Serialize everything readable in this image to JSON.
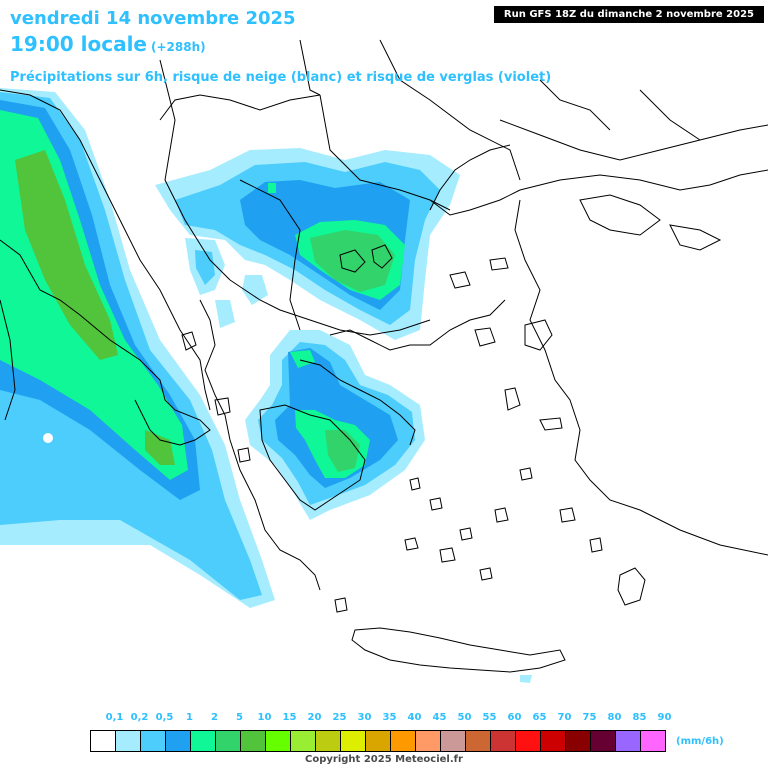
{
  "header": {
    "date_line": "vendredi 14 novembre 2025",
    "time_line": "19:00 locale",
    "lead_time": "(+288h)",
    "run_info": "Run GFS 18Z du dimanche 2 novembre 2025",
    "subtitle": "Précipitations sur 6h, risque de neige (blanc) et risque de verglas (violet)"
  },
  "legend": {
    "unit": "(mm/6h)",
    "labels": [
      "0,1",
      "0,2",
      "0,5",
      "1",
      "2",
      "5",
      "10",
      "15",
      "20",
      "25",
      "30",
      "35",
      "40",
      "45",
      "50",
      "55",
      "60",
      "65",
      "70",
      "75",
      "80",
      "85",
      "90"
    ],
    "colors": [
      "#ffffff",
      "#a6ecff",
      "#4ccdfc",
      "#1fa0f0",
      "#0ff796",
      "#32d36b",
      "#52c43c",
      "#66ff00",
      "#99ee33",
      "#bbcc11",
      "#ddee00",
      "#d9a600",
      "#ff9900",
      "#ff9966",
      "#cc9999",
      "#cc6633",
      "#cc3333",
      "#ff1111",
      "#cc0000",
      "#880000",
      "#660033",
      "#9966ff",
      "#ff66ff"
    ]
  },
  "map_colors": {
    "light_cyan": "#a6ecff",
    "cyan": "#4ccdfc",
    "blue": "#1fa0f0",
    "green": "#0ff796",
    "dark_green": "#32d36b",
    "mid_green": "#52c43c",
    "border": "#000000"
  },
  "footer": {
    "copyright": "Copyright 2025 Meteociel.fr"
  }
}
